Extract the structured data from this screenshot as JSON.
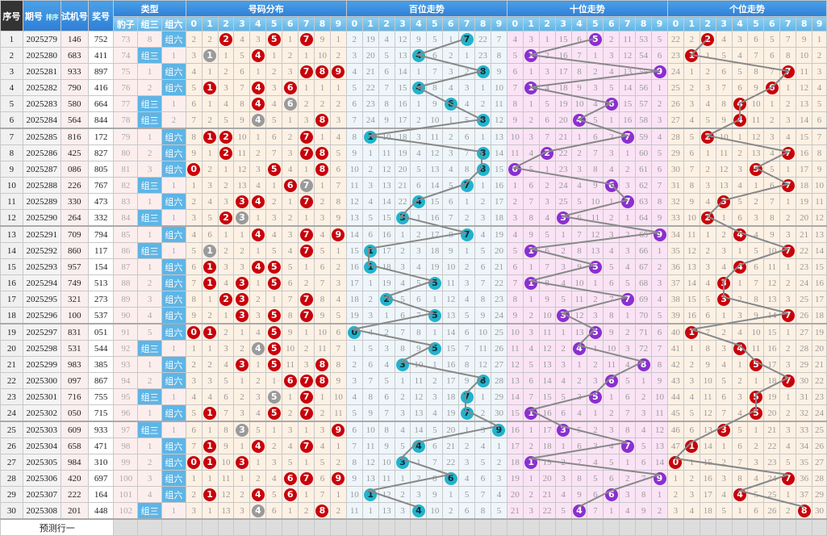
{
  "header": {
    "seq": "序号",
    "issue": "期号",
    "sort": "排序",
    "test": "试机号",
    "award": "奖号",
    "type": "类型",
    "type_cols": [
      "豹子",
      "组三",
      "组六"
    ],
    "sections": [
      "号码分布",
      "百位走势",
      "十位走势",
      "个位走势"
    ],
    "digits": [
      "0",
      "1",
      "2",
      "3",
      "4",
      "5",
      "6",
      "7",
      "8",
      "9"
    ]
  },
  "labels": {
    "zusan": "组三",
    "zuliu": "组六",
    "predict": "预测行一"
  },
  "colors": {
    "hit_single": "#c8000a",
    "hit_double": "#9a9a9a",
    "hundreds": "#22b3cc",
    "tens": "#8a2fd0",
    "units": "#c8000a",
    "header": "#2f7fd6"
  },
  "first_row_misses": {
    "type": {
      "baozi": 73,
      "zusan": 8
    },
    "distribution": [
      2,
      2,
      0,
      4,
      3,
      0,
      1,
      0,
      9,
      1
    ],
    "hundreds": [
      2,
      19,
      4,
      12,
      9,
      5,
      1,
      0,
      22,
      7
    ],
    "tens": [
      4,
      3,
      1,
      15,
      6,
      0,
      2,
      11,
      53,
      5
    ],
    "units": [
      22,
      2,
      0,
      4,
      3,
      6,
      5,
      7,
      9,
      1
    ]
  },
  "rows": [
    {
      "seq": "1",
      "issue": "2025279",
      "test": "146",
      "award": "752"
    },
    {
      "seq": "2",
      "issue": "2025280",
      "test": "683",
      "award": "411"
    },
    {
      "seq": "3",
      "issue": "2025281",
      "test": "933",
      "award": "897"
    },
    {
      "seq": "4",
      "issue": "2025282",
      "test": "790",
      "award": "416"
    },
    {
      "seq": "5",
      "issue": "2025283",
      "test": "580",
      "award": "664"
    },
    {
      "seq": "6",
      "issue": "2025284",
      "test": "564",
      "award": "844"
    },
    {
      "seq": "7",
      "issue": "2025285",
      "test": "816",
      "award": "172"
    },
    {
      "seq": "8",
      "issue": "2025286",
      "test": "425",
      "award": "827"
    },
    {
      "seq": "9",
      "issue": "2025287",
      "test": "086",
      "award": "805"
    },
    {
      "seq": "10",
      "issue": "2025288",
      "test": "226",
      "award": "767"
    },
    {
      "seq": "11",
      "issue": "2025289",
      "test": "330",
      "award": "473"
    },
    {
      "seq": "12",
      "issue": "2025290",
      "test": "264",
      "award": "332"
    },
    {
      "seq": "13",
      "issue": "2025291",
      "test": "709",
      "award": "794"
    },
    {
      "seq": "14",
      "issue": "2025292",
      "test": "860",
      "award": "117"
    },
    {
      "seq": "15",
      "issue": "2025293",
      "test": "957",
      "award": "154"
    },
    {
      "seq": "16",
      "issue": "2025294",
      "test": "749",
      "award": "513"
    },
    {
      "seq": "17",
      "issue": "2025295",
      "test": "321",
      "award": "273"
    },
    {
      "seq": "18",
      "issue": "2025296",
      "test": "100",
      "award": "537"
    },
    {
      "seq": "19",
      "issue": "2025297",
      "test": "831",
      "award": "051"
    },
    {
      "seq": "20",
      "issue": "2025298",
      "test": "531",
      "award": "544"
    },
    {
      "seq": "21",
      "issue": "2025299",
      "test": "983",
      "award": "385"
    },
    {
      "seq": "22",
      "issue": "2025300",
      "test": "097",
      "award": "867"
    },
    {
      "seq": "23",
      "issue": "2025301",
      "test": "716",
      "award": "755"
    },
    {
      "seq": "24",
      "issue": "2025302",
      "test": "050",
      "award": "715"
    },
    {
      "seq": "25",
      "issue": "2025303",
      "test": "609",
      "award": "933"
    },
    {
      "seq": "26",
      "issue": "2025304",
      "test": "658",
      "award": "471"
    },
    {
      "seq": "27",
      "issue": "2025305",
      "test": "984",
      "award": "310"
    },
    {
      "seq": "28",
      "issue": "2025306",
      "test": "420",
      "award": "697"
    },
    {
      "seq": "29",
      "issue": "2025307",
      "test": "222",
      "award": "164"
    },
    {
      "seq": "30",
      "issue": "2025308",
      "test": "201",
      "award": "448"
    }
  ]
}
